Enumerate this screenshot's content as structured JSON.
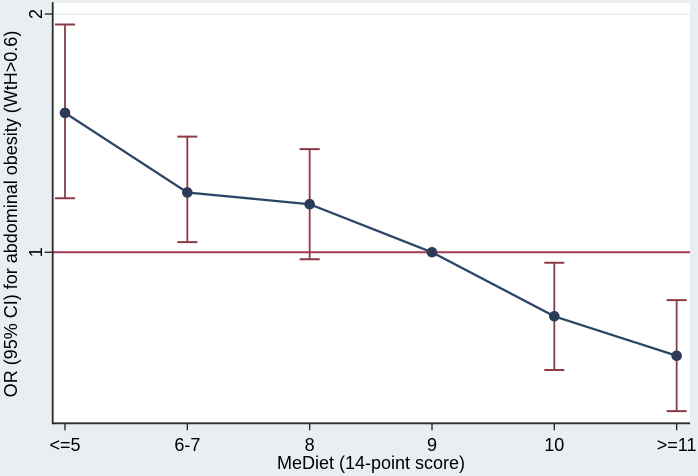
{
  "figure": {
    "background_color": "#e9eff1",
    "plot_background": "#ffffff",
    "axis_color": "#2b2b2b",
    "text_color": "#000000",
    "grid_color": "#dde9f1",
    "line_color": "#2d4668",
    "marker_color": "#2b3a59",
    "ci_color": "#8e3a46",
    "refline_color": "#a33b53"
  },
  "chart_data": {
    "type": "line",
    "title": "",
    "xlabel": "MeDiet (14-point score)",
    "ylabel": "OR (95% CI) for abdominal obesity (WtH>0.6)",
    "x_categories": [
      "<=5",
      "6-7",
      "8",
      "9",
      "10",
      ">=11"
    ],
    "yscale": "log",
    "ylim": [
      0.608,
      2.065
    ],
    "yticks": [
      1,
      2
    ],
    "ytick_labels": [
      "1",
      "2"
    ],
    "series": [
      {
        "name": "Odds ratio with 95% confidence interval",
        "values": [
          1.5,
          1.19,
          1.15,
          1.0,
          0.83,
          0.74
        ],
        "ci_low": [
          1.17,
          1.03,
          0.98,
          null,
          0.71,
          0.63
        ],
        "ci_high": [
          1.94,
          1.4,
          1.35,
          null,
          0.97,
          0.87
        ]
      }
    ],
    "reference_line": 1.0,
    "grid": "faint horizontal gridlines at y major ticks",
    "legend": "none"
  }
}
